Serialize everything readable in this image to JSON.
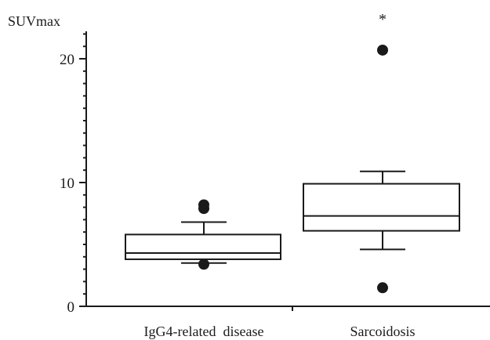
{
  "chart_data": {
    "type": "boxplot",
    "title": "",
    "ylabel": "SUVmax",
    "xlabel": "",
    "ylim": [
      0,
      22
    ],
    "y_ticks": [
      0,
      10,
      20
    ],
    "y_tick_labels": [
      "0",
      "10",
      "20"
    ],
    "y_minor_tick_step": 1,
    "grid": false,
    "legend": "none",
    "categories": [
      "IgG4-related  disease",
      "Sarcoidosis"
    ],
    "boxes": [
      {
        "category": "IgG4-related  disease",
        "whisker_low": 3.5,
        "q1": 3.8,
        "median": 4.3,
        "q3": 5.8,
        "whisker_high": 6.8,
        "outliers": [
          3.4,
          7.9,
          8.2
        ]
      },
      {
        "category": "Sarcoidosis",
        "whisker_low": 4.6,
        "q1": 6.1,
        "median": 7.3,
        "q3": 9.9,
        "whisker_high": 10.9,
        "outliers": [
          1.5,
          20.7
        ]
      }
    ],
    "annotations": [
      {
        "text": "*",
        "category": "Sarcoidosis",
        "y": 23.3
      }
    ],
    "colors": {
      "stroke": "#1a1a1a",
      "outlier": "#1a1a1a",
      "background": "#ffffff"
    }
  }
}
